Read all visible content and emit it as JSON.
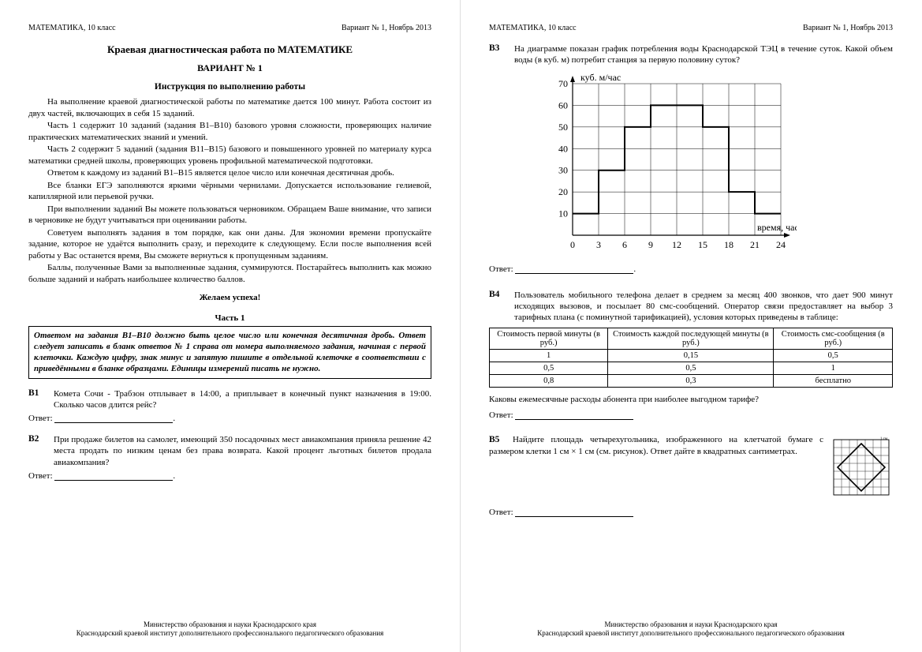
{
  "header": {
    "subject": "МАТЕМАТИКА, 10 класс",
    "variant_date": "Вариант № 1, Ноябрь 2013"
  },
  "page1": {
    "title_main": "Краевая диагностическая работа по МАТЕМАТИКЕ",
    "title_variant": "ВАРИАНТ № 1",
    "title_instr": "Инструкция по выполнению работы",
    "paras": [
      "На выполнение краевой диагностической работы по математике дается 100 минут. Работа состоит из двух частей, включающих в себя 15 заданий.",
      "Часть 1 содержит 10 заданий (задания В1–В10) базового уровня сложности, проверяющих наличие практических математических знаний и умений.",
      "Часть 2 содержит 5 заданий (задания В11–В15) базового и повышенного уровней по материалу курса математики средней школы, проверяющих уровень профильной математической подготовки.",
      "Ответом к каждому из заданий В1–В15 является целое число или конечная десятичная дробь.",
      "Все бланки ЕГЭ заполняются яркими чёрными чернилами. Допускается использование гелиевой, капиллярной или перьевой ручки.",
      "При выполнении заданий Вы можете пользоваться черновиком. Обращаем Ваше внимание, что записи в черновике не будут учитываться при оценивании работы.",
      "Советуем выполнять задания в том порядке, как они даны. Для экономии времени пропускайте задание, которое не удаётся выполнить сразу, и переходите к следующему. Если после выполнения всей работы у Вас останется время, Вы сможете вернуться к пропущенным заданиям.",
      "Баллы, полученные Вами за выполненные задания, суммируются. Постарайтесь выполнить как можно больше заданий и набрать наибольшее количество баллов."
    ],
    "wish": "Желаем успеха!",
    "part1_title": "Часть 1",
    "part1_box": "Ответом на задания В1–В10 должно быть целое число или конечная десятичная дробь. Ответ следует записать в бланк ответов № 1 справа от номера выполняемого задания, начиная с первой клеточки. Каждую цифру, знак минус и запятую пишите в отдельной клеточке в соответствии с приведёнными в бланке образцами. Единицы измерений писать не нужно.",
    "tasks": {
      "B1": {
        "label": "В1",
        "text": "Комета Сочи - Трабзон отплывает в 14:00, а приплывает в конечный пункт назначения в 19:00. Сколько часов длится рейс?"
      },
      "B2": {
        "label": "В2",
        "text": "При продаже билетов на самолет, имеющий 350 посадочных мест авиакомпания приняла решение 42 места продать по низким ценам без права возврата. Какой процент льготных билетов продала авиакомпания?"
      }
    }
  },
  "page2": {
    "tasks": {
      "B3": {
        "label": "В3",
        "text": "На диаграмме показан график потребления воды Краснодарской ТЭЦ в течение суток. Какой объем воды (в куб. м) потребит станция за первую половину суток?"
      },
      "B4": {
        "label": "В4",
        "text": "Пользователь мобильного телефона делает в среднем за месяц 400 звонков, что дает 900 минут исходящих вызовов, и посылает 80 смс-сообщений. Оператор связи предоставляет на выбор 3 тарифных плана (с поминутной тарификацией), условия которых приведены в таблице:",
        "table": {
          "headers": [
            "Стоимость первой минуты (в руб.)",
            "Стоимость каждой последующей минуты (в руб.)",
            "Стоимость смс-сообщения (в руб.)"
          ],
          "rows": [
            [
              "1",
              "0,15",
              "0,5"
            ],
            [
              "0,5",
              "0,5",
              "1"
            ],
            [
              "0,8",
              "0,3",
              "бесплатно"
            ]
          ]
        },
        "question": "Каковы ежемесячные расходы абонента при наиболее выгодном тарифе?"
      },
      "B5": {
        "label": "В5",
        "text": "Найдите площадь четырехугольника, изображенного на клетчатой бумаге с размером клетки 1 см × 1 см (см. рисунок). Ответ дайте в квадратных сантиметрах."
      }
    },
    "chart": {
      "type": "step",
      "ylabel": "куб. м/час",
      "xlabel": "время, час",
      "x_ticks": [
        0,
        3,
        6,
        9,
        12,
        15,
        18,
        21,
        24
      ],
      "y_ticks": [
        10,
        20,
        30,
        40,
        50,
        60,
        70
      ],
      "xlim": [
        0,
        24
      ],
      "ylim": [
        0,
        70
      ],
      "grid_color": "#000000",
      "line_color": "#000000",
      "background_color": "#ffffff",
      "line_width": 2,
      "grid_width": 0.5,
      "step_points": [
        [
          0,
          10
        ],
        [
          3,
          10
        ],
        [
          3,
          30
        ],
        [
          6,
          30
        ],
        [
          6,
          50
        ],
        [
          9,
          50
        ],
        [
          9,
          60
        ],
        [
          15,
          60
        ],
        [
          15,
          50
        ],
        [
          18,
          50
        ],
        [
          18,
          20
        ],
        [
          21,
          20
        ],
        [
          21,
          10
        ],
        [
          24,
          10
        ]
      ]
    },
    "grid_figure": {
      "cell": 10,
      "cols": 7,
      "rows": 7,
      "label": "1 см",
      "diamond_vertices_cells": [
        [
          3.5,
          0.5
        ],
        [
          6.5,
          3.5
        ],
        [
          3.5,
          6.5
        ],
        [
          0.5,
          3.5
        ]
      ]
    }
  },
  "common": {
    "answer_label": "Ответ:",
    "period": "."
  },
  "footer": {
    "line1": "Министерство образования и науки Краснодарского края",
    "line2": "Краснодарский краевой институт дополнительного профессионального педагогического образования"
  }
}
